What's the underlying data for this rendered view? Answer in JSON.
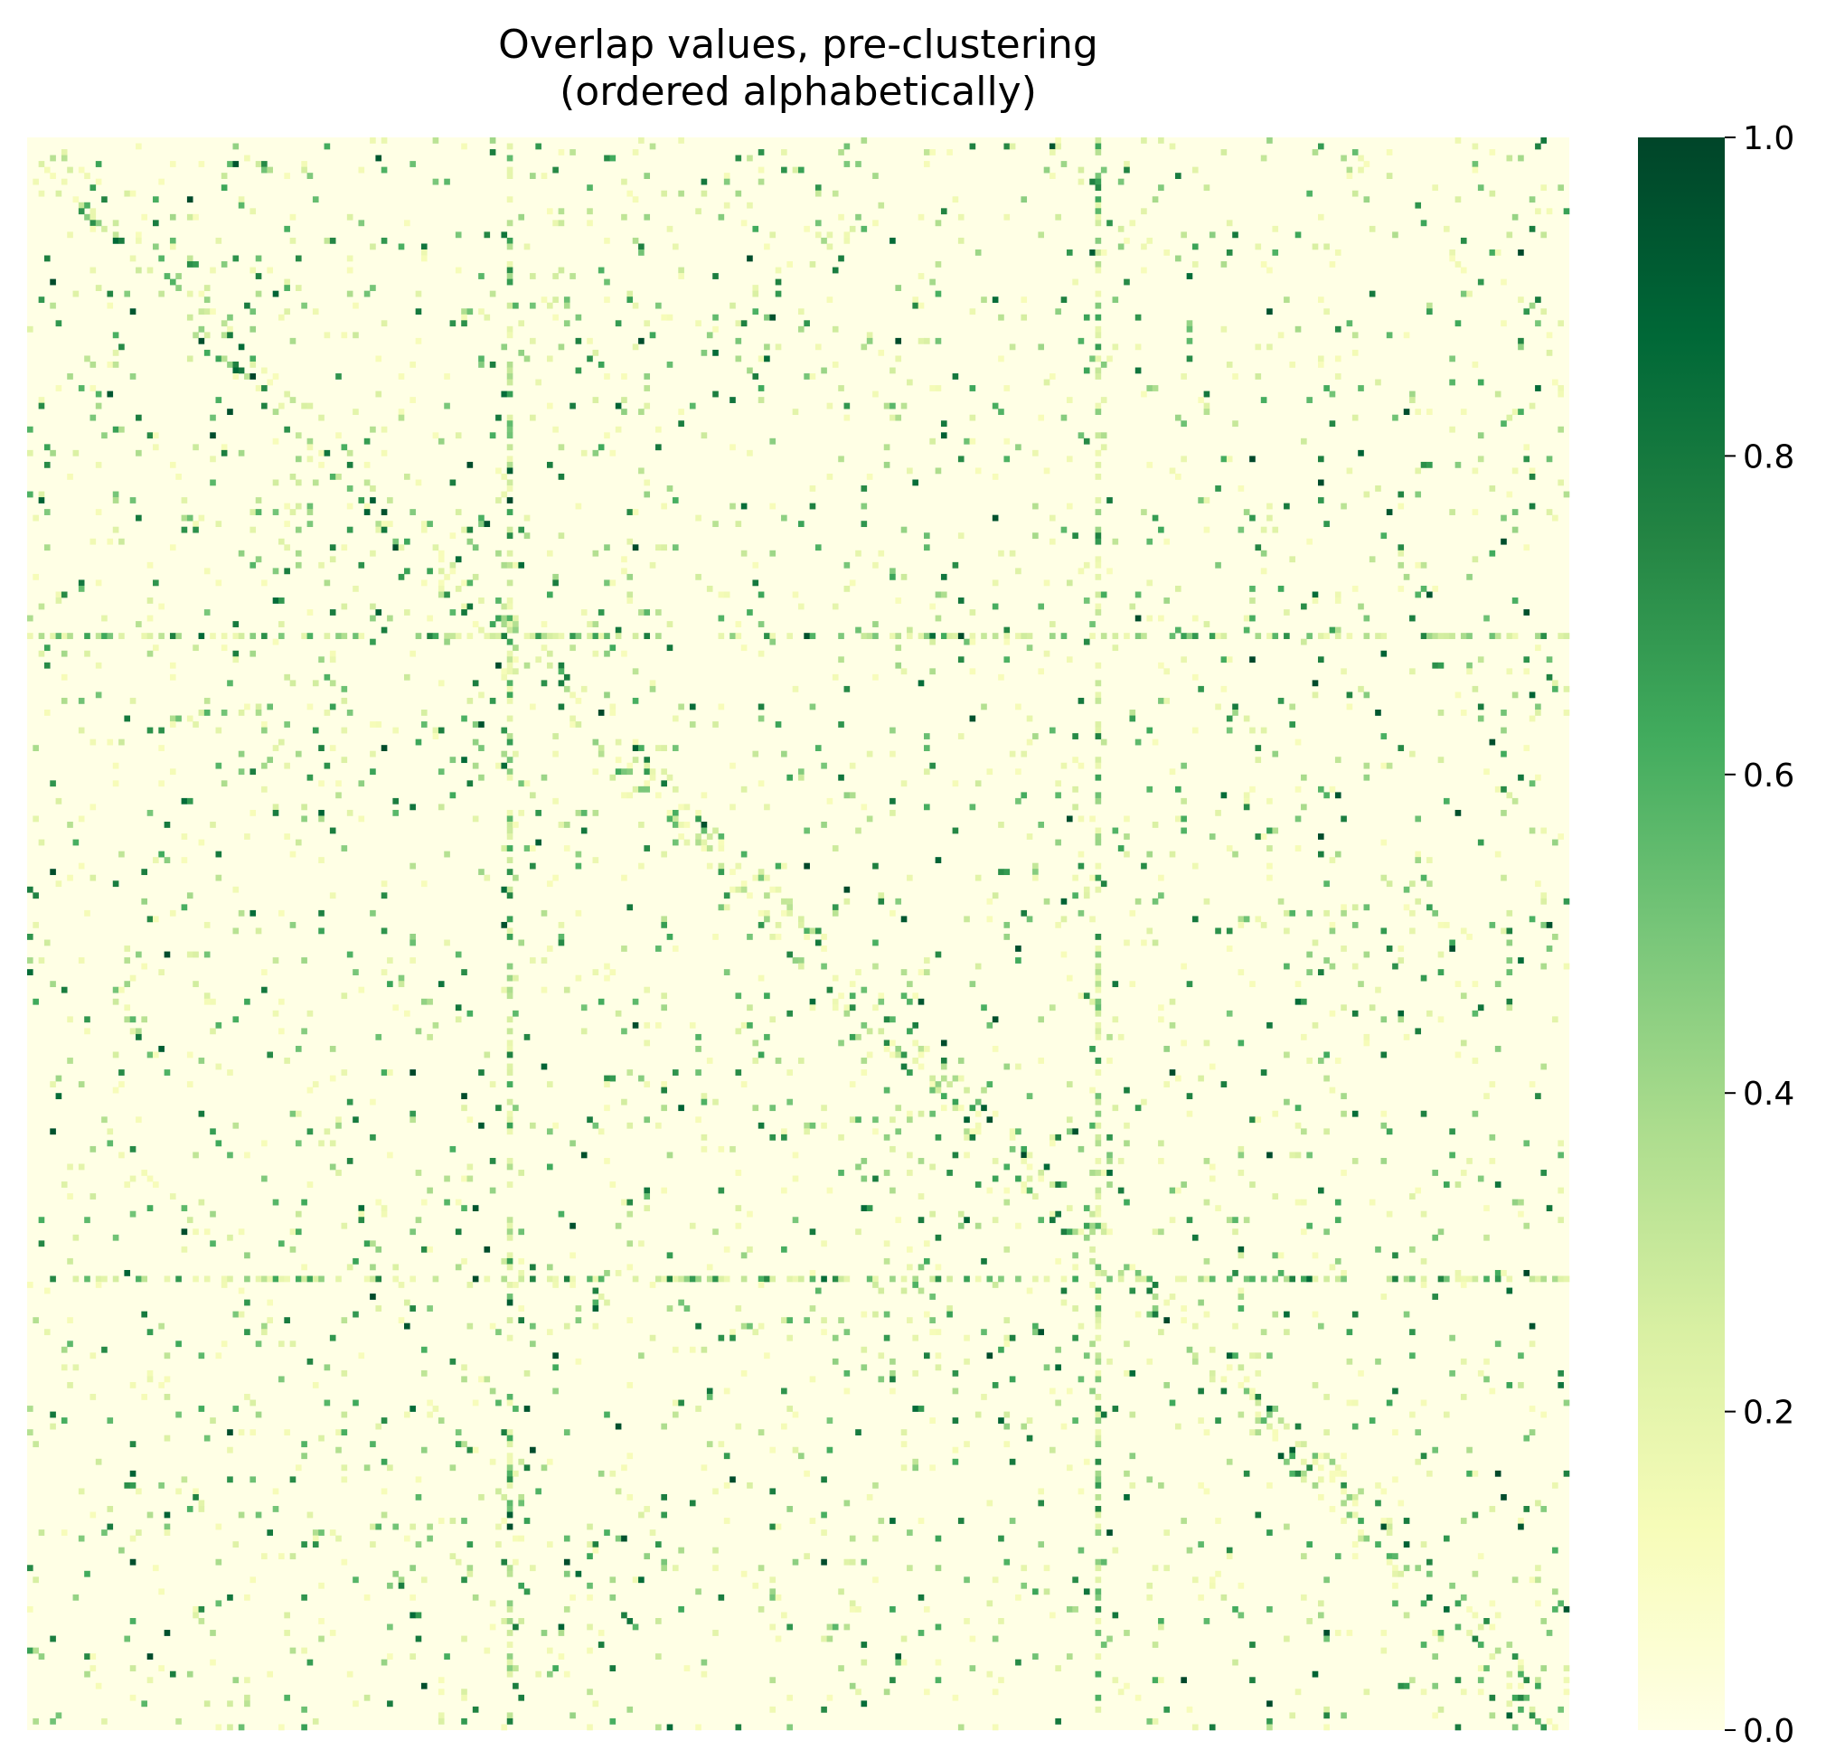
{
  "chart_data": {
    "type": "heatmap",
    "title": "Overlap values, pre-clustering",
    "subtitle": "(ordered alphabetically)",
    "xlabel": "",
    "ylabel": "",
    "x_tick_labels": [],
    "y_tick_labels": [],
    "matrix_size": 270,
    "diagonal_value": 0.0,
    "value_range": [
      0.0,
      1.0
    ],
    "colormap": "Greens-yellow",
    "colorbar": {
      "min": 0.0,
      "max": 1.0,
      "ticks": [
        "0.0",
        "0.2",
        "0.4",
        "0.6",
        "0.8",
        "1.0"
      ],
      "tick_values": [
        0.0,
        0.2,
        0.4,
        0.6,
        0.8,
        1.0
      ],
      "colors": [
        "#ffffe5",
        "#f7fcb9",
        "#d9f0a3",
        "#addd8e",
        "#78c679",
        "#41ab5d",
        "#238443",
        "#006837",
        "#004529"
      ]
    },
    "notable_rows": [
      {
        "index": 84,
        "mean_overlap": 0.3
      },
      {
        "index": 193,
        "mean_overlap": 0.35
      }
    ],
    "notable_columns": [
      {
        "index": 84,
        "mean_overlap": 0.3
      },
      {
        "index": 187,
        "mean_overlap": 0.55
      }
    ],
    "grid": false,
    "legend": "colorbar-right"
  }
}
